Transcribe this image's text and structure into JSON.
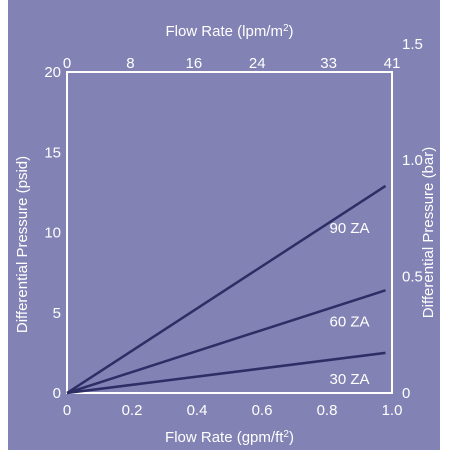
{
  "chart_data": {
    "type": "line",
    "title": "",
    "xlabel_bottom": "Flow Rate (gpm/ft",
    "xlabel_bottom_sup": "2",
    "xlabel_bottom_end": ")",
    "xlabel_top": "Flow Rate (lpm/m",
    "xlabel_top_sup": "2",
    "xlabel_top_end": ")",
    "ylabel_left": "Differential Pressure (psid)",
    "ylabel_right": "Differential Pressure (bar)",
    "x_bottom_ticks": [
      "0",
      "0.2",
      "0.4",
      "0.6",
      "0.8",
      "1.0"
    ],
    "x_bottom_tick_values": [
      0,
      0.2,
      0.4,
      0.6,
      0.8,
      1.0
    ],
    "x_top_ticks": [
      "0",
      "8",
      "16",
      "24",
      "33",
      "41"
    ],
    "x_top_tick_values": [
      0,
      8,
      16,
      24,
      33,
      41
    ],
    "y_left_ticks": [
      "0",
      "5",
      "10",
      "15",
      "20"
    ],
    "y_left_tick_values": [
      0,
      5,
      10,
      15,
      20
    ],
    "y_right_ticks": [
      "0",
      "0.5",
      "1.0",
      "1.5"
    ],
    "y_right_tick_values": [
      0,
      0.5,
      1.0,
      1.5
    ],
    "xlim": [
      0,
      1.0
    ],
    "ylim": [
      0,
      20
    ],
    "grid": false,
    "series": [
      {
        "name": "90 ZA",
        "x": [
          0,
          0.98
        ],
        "y": [
          0,
          12.9
        ]
      },
      {
        "name": "60 ZA",
        "x": [
          0,
          0.98
        ],
        "y": [
          0,
          6.4
        ]
      },
      {
        "name": "30 ZA",
        "x": [
          0,
          0.98
        ],
        "y": [
          0,
          2.5
        ]
      }
    ],
    "colors": {
      "background": "#8282B4",
      "plot_area": "#8282B4",
      "frame": "#ffffff",
      "line": "#2E2E66",
      "text": "#ffffff"
    }
  }
}
